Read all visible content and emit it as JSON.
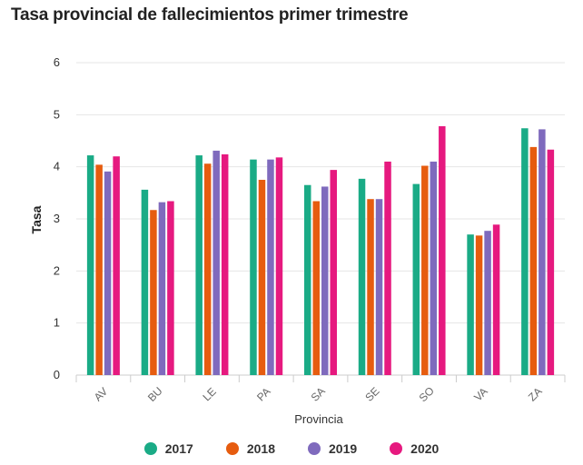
{
  "chart_data": {
    "type": "bar",
    "title": "Tasa provincial de fallecimientos primer trimestre",
    "xlabel": "Provincia",
    "ylabel": "Tasa",
    "ylim": [
      0,
      6
    ],
    "yticks": [
      0,
      1,
      2,
      3,
      4,
      5,
      6
    ],
    "grid": true,
    "legend_position": "bottom",
    "categories": [
      "AV",
      "BU",
      "LE",
      "PA",
      "SA",
      "SE",
      "SO",
      "VA",
      "ZA"
    ],
    "series": [
      {
        "name": "2017",
        "color": "#1aab86",
        "values": [
          4.22,
          3.56,
          4.22,
          4.14,
          3.65,
          3.77,
          3.67,
          2.7,
          4.74
        ]
      },
      {
        "name": "2018",
        "color": "#e65c0f",
        "values": [
          4.04,
          3.17,
          4.06,
          3.75,
          3.34,
          3.38,
          4.02,
          2.68,
          4.38
        ]
      },
      {
        "name": "2019",
        "color": "#7f6abd",
        "values": [
          3.91,
          3.32,
          4.31,
          4.14,
          3.62,
          3.38,
          4.1,
          2.77,
          4.72
        ]
      },
      {
        "name": "2020",
        "color": "#e6197f",
        "values": [
          4.2,
          3.34,
          4.24,
          4.18,
          3.94,
          4.1,
          4.78,
          2.89,
          4.33
        ]
      }
    ]
  }
}
